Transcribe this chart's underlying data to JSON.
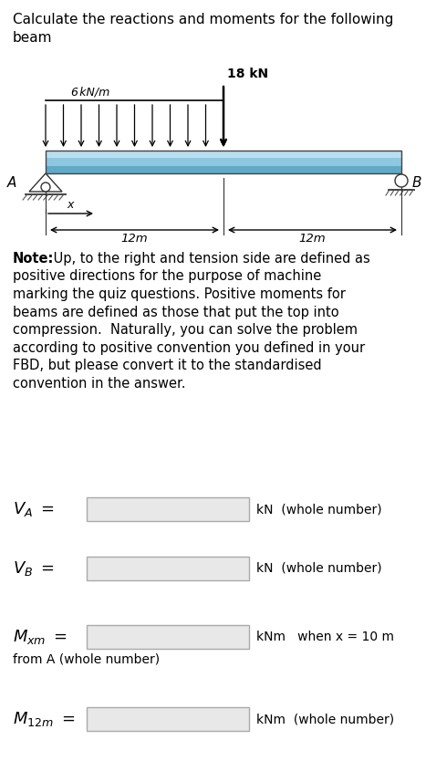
{
  "title_line1": "Calculate the reactions and moments for the following",
  "title_line2": "beam",
  "load_distributed_label": "6 kN/m",
  "load_point_label": "18 kN",
  "label_A": "A",
  "label_B": "B",
  "dim_x_label": "x",
  "dim_left": "12m",
  "dim_right": "12m",
  "note_bold": "Note:",
  "note_rest": " Up, to the right and tension side are defined as",
  "note_lines": [
    "positive directions for the purpose of machine",
    "marking the quiz questions. Positive moments for",
    "beams are defined as those that put the top into",
    "compression.  Naturally, you can solve the problem",
    "according to positive convention you defined in your",
    "FBD, but please convert it to the standardised",
    "convention in the answer."
  ],
  "VA_unit": "kN  (whole number)",
  "VB_unit": "kN  (whole number)",
  "Mxm_unit": "kNm   when x = 10 m",
  "Mxm_sub": "from A (whole number)",
  "M12m_unit": "kNm  (whole number)",
  "beam_color_light": "#b8dff0",
  "beam_color_mid": "#8dc8e0",
  "beam_color_dark": "#5eaac8",
  "background_color": "#ffffff",
  "box_face": "#e8e8e8",
  "box_edge": "#aaaaaa",
  "text_color": "#333333",
  "note_color": "#555566"
}
